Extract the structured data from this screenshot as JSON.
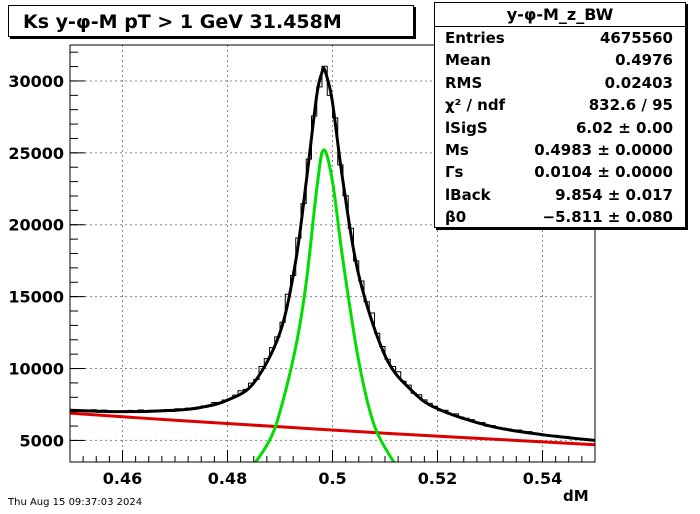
{
  "title": "Ks y-φ-M pT > 1 GeV   31.458M",
  "stats": {
    "name": "y-φ-M_z_BW",
    "rows": [
      {
        "label": "Entries",
        "value": "4675560"
      },
      {
        "label": "Mean",
        "value": "0.4976"
      },
      {
        "label": "RMS",
        "value": "0.02403"
      },
      {
        "label": "χ² / ndf",
        "value": "832.6 / 95"
      },
      {
        "label": "lSigS",
        "value": "6.02 ± 0.00"
      },
      {
        "label": "Ms",
        "value": "0.4983 ± 0.0000"
      },
      {
        "label": "Γs",
        "value": "0.0104 ± 0.0000"
      },
      {
        "label": "lBack",
        "value": "9.854 ± 0.017"
      },
      {
        "label": "β0",
        "value": "−5.811 ± 0.080"
      }
    ]
  },
  "date": "Thu Aug 15 09:37:03 2024",
  "colors": {
    "total": "#000000",
    "signal": "#00dd00",
    "background": "#dd0000"
  },
  "chart_data": {
    "type": "line",
    "title": "Ks y-φ-M pT > 1 GeV   31.458M",
    "xlabel": "dM",
    "ylabel": "",
    "xlim": [
      0.45,
      0.55
    ],
    "ylim": [
      3500,
      32500
    ],
    "xticks": [
      "0.46",
      "0.48",
      "0.5",
      "0.52",
      "0.54"
    ],
    "yticks": [
      "5000",
      "10000",
      "15000",
      "20000",
      "25000",
      "30000"
    ],
    "grid": true,
    "series": [
      {
        "role": "total fit",
        "color": "#000000",
        "x": [
          0.45,
          0.46,
          0.47,
          0.475,
          0.48,
          0.485,
          0.49,
          0.493,
          0.495,
          0.497,
          0.498,
          0.4983,
          0.499,
          0.5,
          0.502,
          0.505,
          0.51,
          0.515,
          0.52,
          0.53,
          0.54,
          0.55
        ],
        "y": [
          7100,
          7000,
          7100,
          7300,
          7800,
          9000,
          12500,
          17500,
          23000,
          29000,
          30600,
          30900,
          30200,
          28500,
          23000,
          16500,
          10900,
          8500,
          7200,
          6000,
          5400,
          5000
        ]
      },
      {
        "role": "signal",
        "color": "#00dd00",
        "x": [
          0.485,
          0.488,
          0.49,
          0.493,
          0.495,
          0.497,
          0.4983,
          0.5,
          0.502,
          0.505,
          0.508,
          0.512
        ],
        "y": [
          3300,
          5000,
          7000,
          11500,
          16000,
          22500,
          25200,
          23000,
          17500,
          10500,
          6000,
          3300
        ]
      },
      {
        "role": "background",
        "color": "#dd0000",
        "x": [
          0.45,
          0.47,
          0.49,
          0.51,
          0.53,
          0.55
        ],
        "y": [
          6900,
          6400,
          5950,
          5500,
          5100,
          4700
        ]
      }
    ]
  }
}
